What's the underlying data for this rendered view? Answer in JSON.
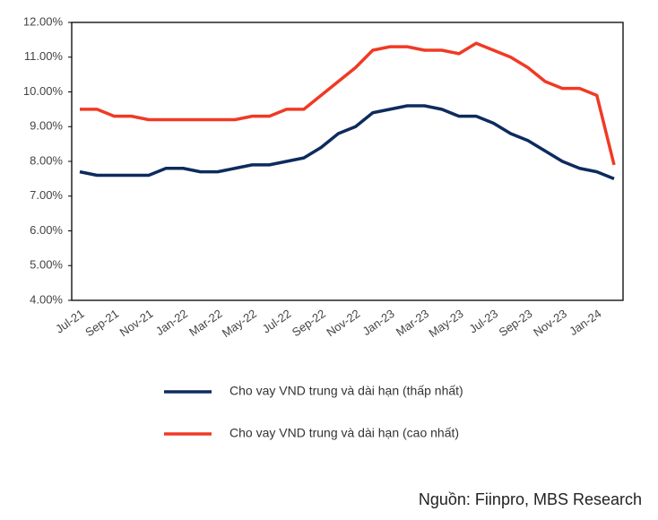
{
  "chart_data": {
    "type": "line",
    "categories": [
      "Jul-21",
      null,
      "Sep-21",
      null,
      "Nov-21",
      null,
      "Jan-22",
      null,
      "Mar-22",
      null,
      "May-22",
      null,
      "Jul-22",
      null,
      "Sep-22",
      null,
      "Nov-22",
      null,
      "Jan-23",
      null,
      "Mar-23",
      null,
      "May-23",
      null,
      "Jul-23",
      null,
      "Sep-23",
      null,
      "Nov-23",
      null,
      "Jan-24",
      null
    ],
    "series": [
      {
        "name": "Cho vay VND trung và dài hạn (thấp nhất)",
        "color": "#0d2b5e",
        "values": [
          7.7,
          7.6,
          7.6,
          7.6,
          7.6,
          7.8,
          7.8,
          7.7,
          7.7,
          7.8,
          7.9,
          7.9,
          8.0,
          8.1,
          8.4,
          8.8,
          9.0,
          9.4,
          9.5,
          9.6,
          9.6,
          9.5,
          9.3,
          9.3,
          9.1,
          8.8,
          8.6,
          8.3,
          8.0,
          7.8,
          7.7,
          7.5
        ]
      },
      {
        "name": "Cho vay VND trung và dài hạn (cao nhất)",
        "color": "#f03a24",
        "values": [
          9.5,
          9.5,
          9.3,
          9.3,
          9.2,
          9.2,
          9.2,
          9.2,
          9.2,
          9.2,
          9.3,
          9.3,
          9.5,
          9.5,
          9.9,
          10.3,
          10.7,
          11.2,
          11.3,
          11.3,
          11.2,
          11.2,
          11.1,
          11.4,
          11.2,
          11.0,
          10.7,
          10.3,
          10.1,
          10.1,
          9.9,
          7.9
        ]
      }
    ],
    "ylim": [
      4,
      12
    ],
    "yticks": [
      {
        "value": 4,
        "label": "4.00%"
      },
      {
        "value": 5,
        "label": "5.00%"
      },
      {
        "value": 6,
        "label": "6.00%"
      },
      {
        "value": 7,
        "label": "7.00%"
      },
      {
        "value": 8,
        "label": "8.00%"
      },
      {
        "value": 9,
        "label": "9.00%"
      },
      {
        "value": 10,
        "label": "10.00%"
      },
      {
        "value": 11,
        "label": "11.00%"
      },
      {
        "value": 12,
        "label": "12.00%"
      }
    ],
    "grid": false,
    "source": "Nguồn: Fiinpro, MBS Research"
  }
}
